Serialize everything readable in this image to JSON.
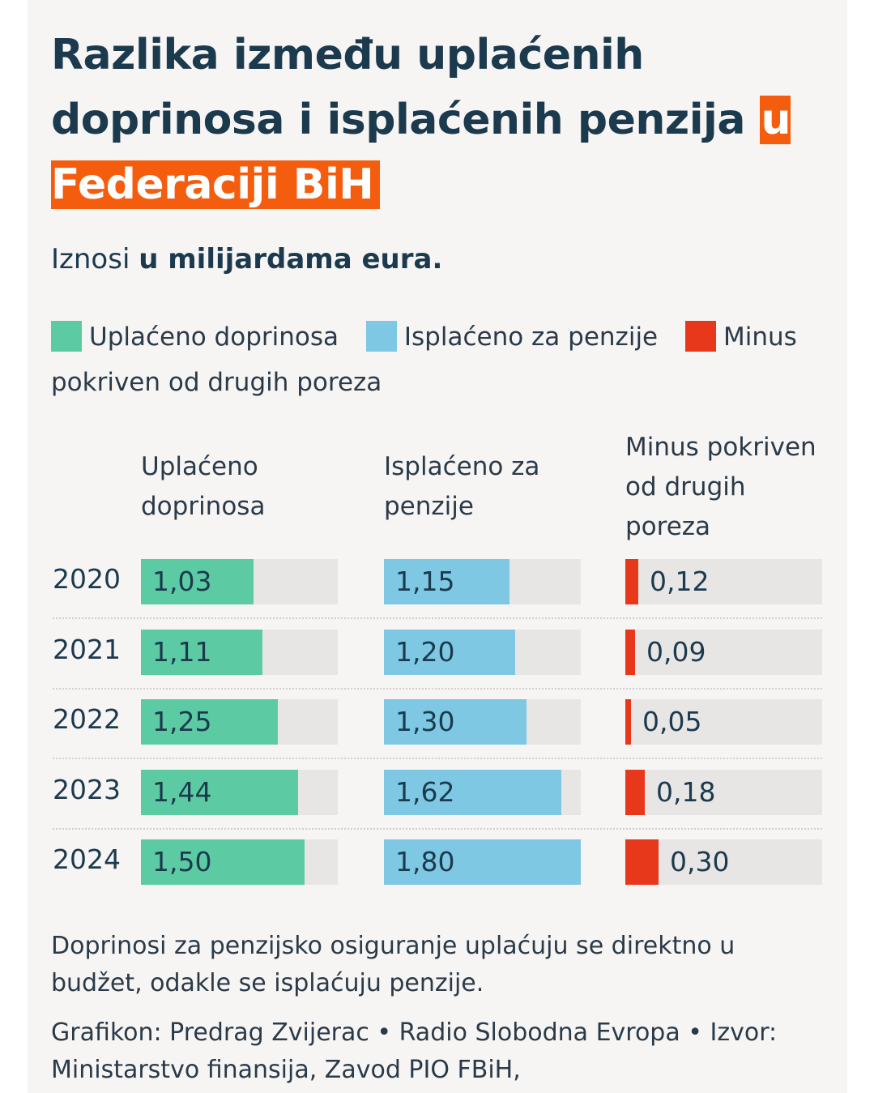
{
  "title": {
    "part1": "Razlika između uplaćenih doprinosa i isplaćenih penzija ",
    "highlight": "u Federaciji BiH"
  },
  "subtitle": {
    "prefix": "Iznosi ",
    "bold": "u milijardama eura."
  },
  "legend": [
    {
      "label": "Uplaćeno doprinosa",
      "color": "#5ccba4"
    },
    {
      "label": "Isplaćeno za penzije",
      "color": "#7ec8e3"
    },
    {
      "label": "Minus pokriven od drugih poreza",
      "color": "#e8381c"
    }
  ],
  "chart_data": {
    "type": "table",
    "title": "Razlika između uplaćenih doprinosa i isplaćenih penzija u Federaciji BiH",
    "unit": "milijarde eura",
    "max_value": 1.8,
    "columns": [
      {
        "label": "Uplaćeno doprinosa",
        "color": "#5ccba4"
      },
      {
        "label": "Isplaćeno za penzije",
        "color": "#7ec8e3"
      },
      {
        "label": "Minus pokriven od drugih poreza",
        "color": "#e8381c"
      }
    ],
    "rows": [
      {
        "year": "2020",
        "values": [
          1.03,
          1.15,
          0.12
        ],
        "labels": [
          "1,03",
          "1,15",
          "0,12"
        ]
      },
      {
        "year": "2021",
        "values": [
          1.11,
          1.2,
          0.09
        ],
        "labels": [
          "1,11",
          "1,20",
          "0,09"
        ]
      },
      {
        "year": "2022",
        "values": [
          1.25,
          1.3,
          0.05
        ],
        "labels": [
          "1,25",
          "1,30",
          "0,05"
        ]
      },
      {
        "year": "2023",
        "values": [
          1.44,
          1.62,
          0.18
        ],
        "labels": [
          "1,44",
          "1,62",
          "0,18"
        ]
      },
      {
        "year": "2024",
        "values": [
          1.5,
          1.8,
          0.3
        ],
        "labels": [
          "1,50",
          "1,80",
          "0,30"
        ]
      }
    ]
  },
  "note": "Doprinosi za penzijsko osiguranje uplaćuju se direktno u budžet, odakle se isplaćuju penzije.",
  "credit": "Grafikon: Predrag Zvijerac • Radio Slobodna Evropa • Izvor: Ministarstvo finansija, Zavod PIO FBiH,"
}
